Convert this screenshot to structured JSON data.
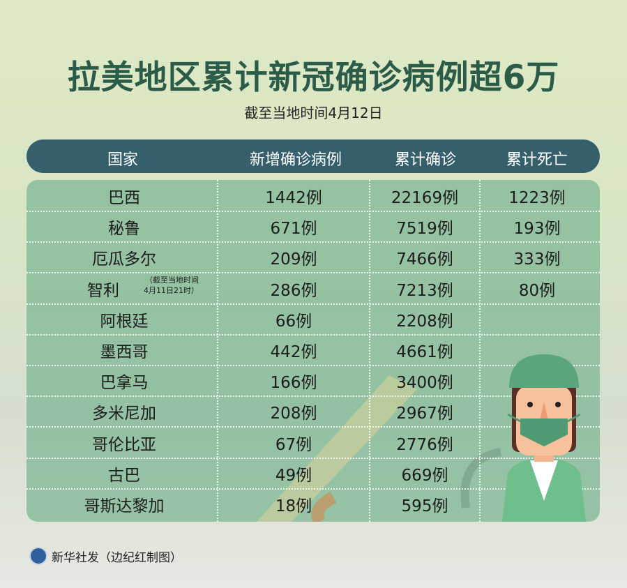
{
  "title": "拉美地区累计新冠确诊病例超6万",
  "subtitle": "截至当地时间4月12日",
  "chart_data": {
    "type": "table",
    "columns": [
      "国家",
      "新增确诊病例",
      "累计确诊",
      "累计死亡"
    ],
    "unit": "例",
    "rows": [
      {
        "country": "巴西",
        "new": "1442例",
        "total": "22169例",
        "deaths": "1223例"
      },
      {
        "country": "秘鲁",
        "new": "671例",
        "total": "7519例",
        "deaths": "193例"
      },
      {
        "country": "厄瓜多尔",
        "new": "209例",
        "total": "7466例",
        "deaths": "333例"
      },
      {
        "country": "智利",
        "note": "（截至当地时间 4月11日21时）",
        "new": "286例",
        "total": "7213例",
        "deaths": "80例"
      },
      {
        "country": "阿根廷",
        "new": "66例",
        "total": "2208例",
        "deaths": ""
      },
      {
        "country": "墨西哥",
        "new": "442例",
        "total": "4661例",
        "deaths": ""
      },
      {
        "country": "巴拿马",
        "new": "166例",
        "total": "3400例",
        "deaths": ""
      },
      {
        "country": "多米尼加",
        "new": "208例",
        "total": "2967例",
        "deaths": ""
      },
      {
        "country": "哥伦比亚",
        "new": "67例",
        "total": "2776例",
        "deaths": ""
      },
      {
        "country": "古巴",
        "new": "49例",
        "total": "669例",
        "deaths": ""
      },
      {
        "country": "哥斯达黎加",
        "new": "18例",
        "total": "595例",
        "deaths": ""
      }
    ]
  },
  "note_lines": [
    "（截至当地时间",
    "4月11日21时）"
  ],
  "footer": {
    "credit": "新华社发（边纪红制图）",
    "logo_icon": "xinhua-logo-icon"
  },
  "colors": {
    "title": "#2b5b49",
    "header": "#35606b",
    "table": "#82b996"
  }
}
